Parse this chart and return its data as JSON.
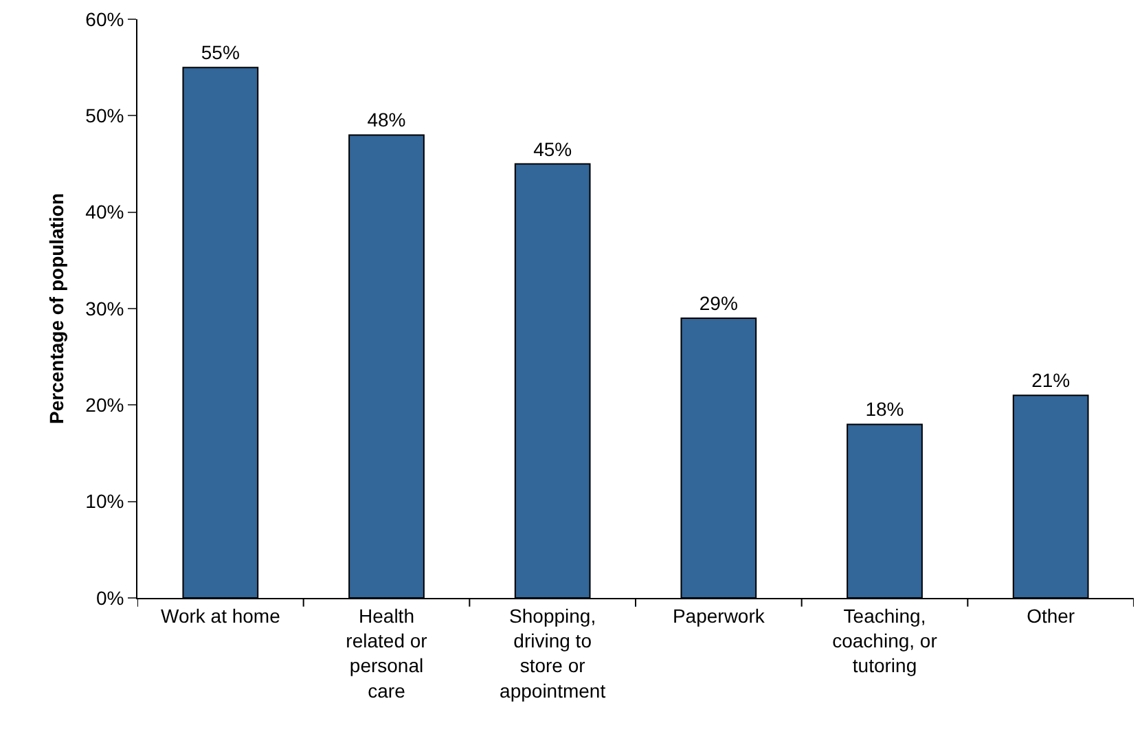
{
  "chart_data": {
    "type": "bar",
    "ylabel": "Percentage of population",
    "categories": [
      "Work at home",
      "Health related or personal care",
      "Shopping, driving to store or appointment",
      "Paperwork",
      "Teaching, coaching, or tutoring",
      "Other"
    ],
    "values": [
      55,
      48,
      45,
      29,
      18,
      21
    ],
    "value_labels": [
      "55%",
      "48%",
      "45%",
      "29%",
      "18%",
      "21%"
    ],
    "color": "#336699",
    "ylim": [
      0,
      60
    ],
    "yticks": [
      {
        "value": 0,
        "label": "0%"
      },
      {
        "value": 10,
        "label": "10%"
      },
      {
        "value": 20,
        "label": "20%"
      },
      {
        "value": 30,
        "label": "30%"
      },
      {
        "value": 40,
        "label": "40%"
      },
      {
        "value": 50,
        "label": "50%"
      },
      {
        "value": 60,
        "label": "60%"
      }
    ]
  }
}
